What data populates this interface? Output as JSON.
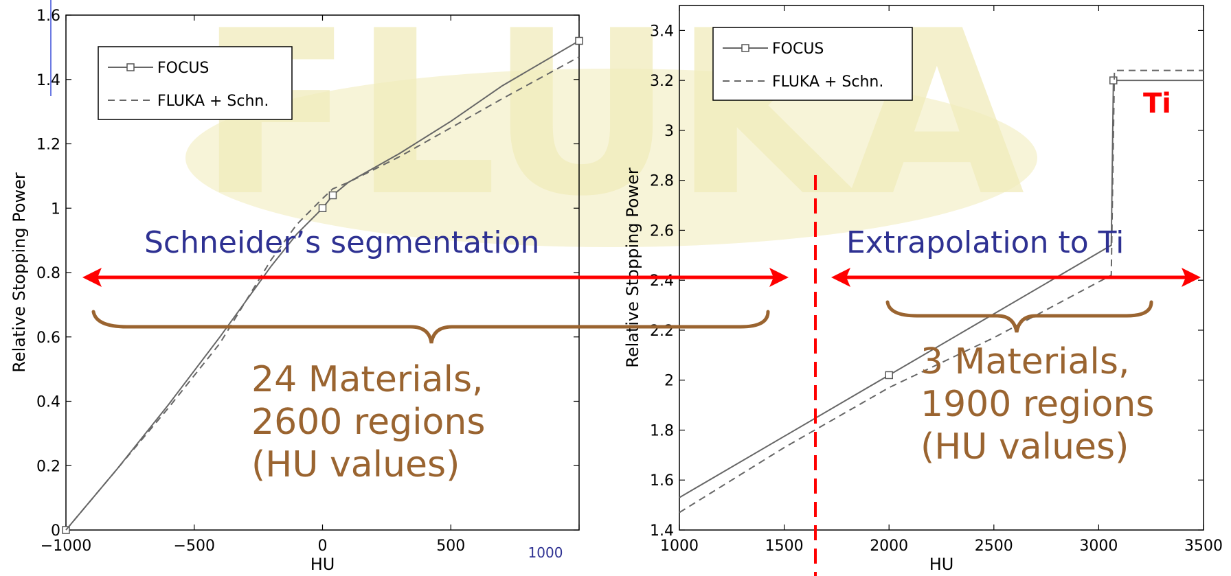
{
  "watermark": {
    "text": "FLUKA"
  },
  "left_chart_corner_label": "1000",
  "annotations": {
    "left_caption": "Schneider’s segmentation",
    "right_caption": "Extrapolation to Ti",
    "left_count": [
      "24 Materials,",
      "2600 regions",
      "(HU values)"
    ],
    "right_count": [
      "3 Materials,",
      "1900 regions",
      "(HU values)"
    ],
    "ti_label": "Ti"
  },
  "colors": {
    "caption": "#2e3192",
    "count": "#9a6430",
    "arrow": "#ff0000",
    "ti": "#ff0000",
    "watermark": "#f4f0c8",
    "line": "#666666"
  },
  "chart_data": [
    {
      "type": "line",
      "title": "",
      "xlabel": "HU",
      "ylabel": "Relative Stopping Power",
      "xlim": [
        -1000,
        1000
      ],
      "ylim": [
        0,
        1.6
      ],
      "xticks": [
        -1000,
        -500,
        0,
        500,
        1000
      ],
      "xtick_labels": [
        "−1000",
        "−500",
        "0",
        "500",
        ""
      ],
      "yticks": [
        0,
        0.2,
        0.4,
        0.6,
        0.8,
        1.0,
        1.2,
        1.4,
        1.6
      ],
      "ytick_labels": [
        "0",
        "0.2",
        "0.4",
        "0.6",
        "0.8",
        "1",
        "1.2",
        "1.4",
        "1.6"
      ],
      "grid": false,
      "legend": "top-left",
      "series": [
        {
          "name": "FOCUS",
          "style": "solid-square",
          "x": [
            -1000,
            -800,
            -600,
            -400,
            -200,
            -100,
            0,
            40,
            100,
            300,
            500,
            700,
            1000
          ],
          "y": [
            0.0,
            0.19,
            0.39,
            0.6,
            0.82,
            0.92,
            1.0,
            1.04,
            1.08,
            1.17,
            1.27,
            1.38,
            1.52
          ],
          "markers_x": [
            -1000,
            0,
            40,
            1000
          ],
          "markers_y": [
            0.0,
            1.0,
            1.04,
            1.52
          ]
        },
        {
          "name": "FLUKA + Schn.",
          "style": "dashed",
          "x": [
            -1000,
            -800,
            -600,
            -400,
            -200,
            -100,
            0,
            40,
            100,
            300,
            500,
            700,
            1000
          ],
          "y": [
            0.0,
            0.19,
            0.38,
            0.58,
            0.84,
            0.95,
            1.03,
            1.06,
            1.08,
            1.16,
            1.25,
            1.34,
            1.47
          ],
          "markers_x": [],
          "markers_y": []
        }
      ]
    },
    {
      "type": "line",
      "title": "",
      "xlabel": "HU",
      "ylabel": "Relative Stopping Power",
      "xlim": [
        1000,
        3500
      ],
      "ylim": [
        1.4,
        3.5
      ],
      "xticks": [
        1000,
        1500,
        2000,
        2500,
        3000,
        3500
      ],
      "xtick_labels": [
        "1000",
        "1500",
        "2000",
        "2500",
        "3000",
        "3500"
      ],
      "yticks": [
        1.4,
        1.6,
        1.8,
        2.0,
        2.2,
        2.4,
        2.6,
        2.8,
        3.0,
        3.2,
        3.4
      ],
      "ytick_labels": [
        "1.4",
        "1.6",
        "1.8",
        "2",
        "2.2",
        "2.4",
        "2.6",
        "2.8",
        "3",
        "3.2",
        "3.4"
      ],
      "grid": false,
      "legend": "top-left",
      "series": [
        {
          "name": "FOCUS",
          "style": "solid-square",
          "x": [
            1000,
            2000,
            3060,
            3070,
            3500
          ],
          "y": [
            1.53,
            2.02,
            2.54,
            3.2,
            3.2
          ],
          "markers_x": [
            2000,
            3070
          ],
          "markers_y": [
            2.02,
            3.2
          ]
        },
        {
          "name": "FLUKA + Schn.",
          "style": "dashed",
          "x": [
            1000,
            1500,
            2000,
            2500,
            3060,
            3075,
            3500
          ],
          "y": [
            1.47,
            1.73,
            1.97,
            2.17,
            2.42,
            3.24,
            3.24
          ],
          "markers_x": [],
          "markers_y": []
        }
      ]
    }
  ]
}
